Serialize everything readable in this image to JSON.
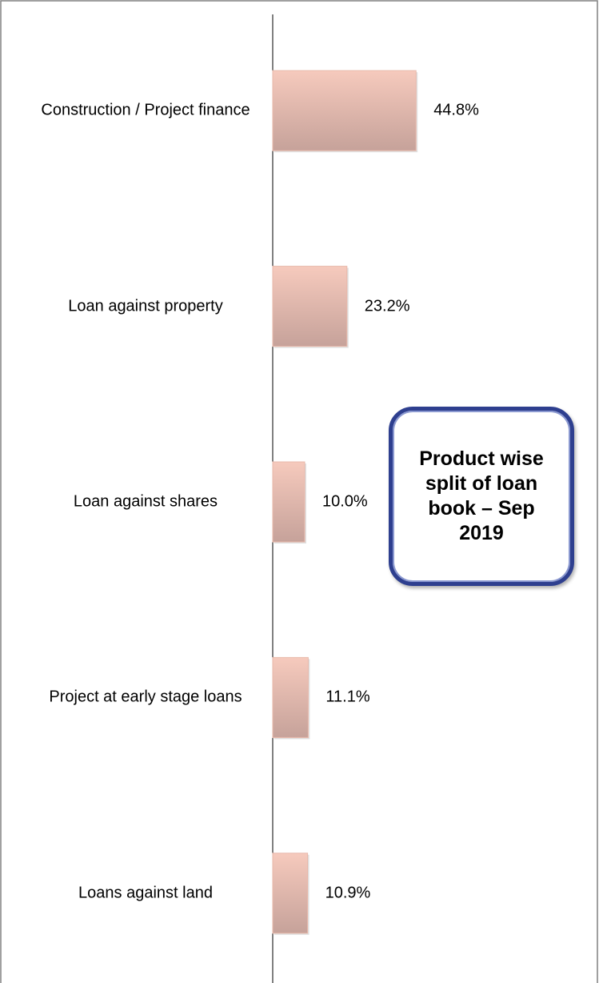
{
  "chart_data": {
    "type": "bar",
    "orientation": "horizontal",
    "title": "Product wise split of loan book – Sep 2019",
    "categories": [
      "Construction / Project finance",
      "Loan against property",
      "Loan against shares",
      "Project at early stage loans",
      "Loans against land"
    ],
    "values": [
      44.8,
      23.2,
      10.0,
      11.1,
      10.9
    ],
    "value_labels": [
      "44.8%",
      "23.2%",
      "10.0%",
      "11.1%",
      "10.9%"
    ],
    "color": "#e8b8aa",
    "xlim": [
      0,
      100
    ]
  }
}
